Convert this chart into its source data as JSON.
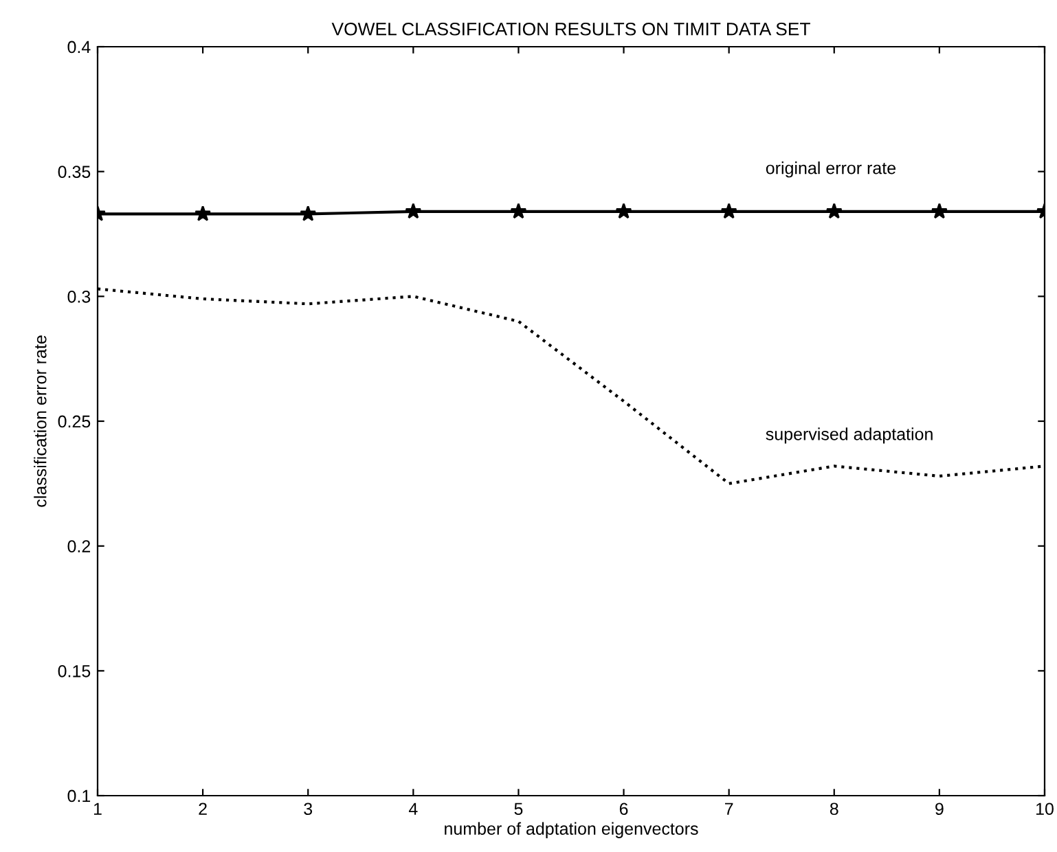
{
  "chart_data": {
    "type": "line",
    "title": "VOWEL CLASSIFICATION RESULTS ON TIMIT DATA SET",
    "xlabel": "number of adptation eigenvectors",
    "ylabel": "classification error rate",
    "x": [
      1,
      2,
      3,
      4,
      5,
      6,
      7,
      8,
      9,
      10
    ],
    "series": [
      {
        "name": "original error rate",
        "color": "#000000",
        "marker": "star",
        "line_style": "solid",
        "values": [
          0.333,
          0.333,
          0.333,
          0.334,
          0.334,
          0.334,
          0.334,
          0.334,
          0.334,
          0.334
        ]
      },
      {
        "name": "supervised adaptation",
        "color": "#000000",
        "marker": "none",
        "line_style": "dotted",
        "values": [
          0.303,
          0.299,
          0.297,
          0.3,
          0.29,
          0.258,
          0.225,
          0.232,
          0.228,
          0.232
        ]
      }
    ],
    "xlim": [
      1,
      10
    ],
    "xticks": [
      1,
      2,
      3,
      4,
      5,
      6,
      7,
      8,
      9,
      10
    ],
    "ylim": [
      0.1,
      0.4
    ],
    "yticks": [
      0.1,
      0.15,
      0.2,
      0.25,
      0.3,
      0.35,
      0.4
    ],
    "grid": false,
    "legend": false
  }
}
